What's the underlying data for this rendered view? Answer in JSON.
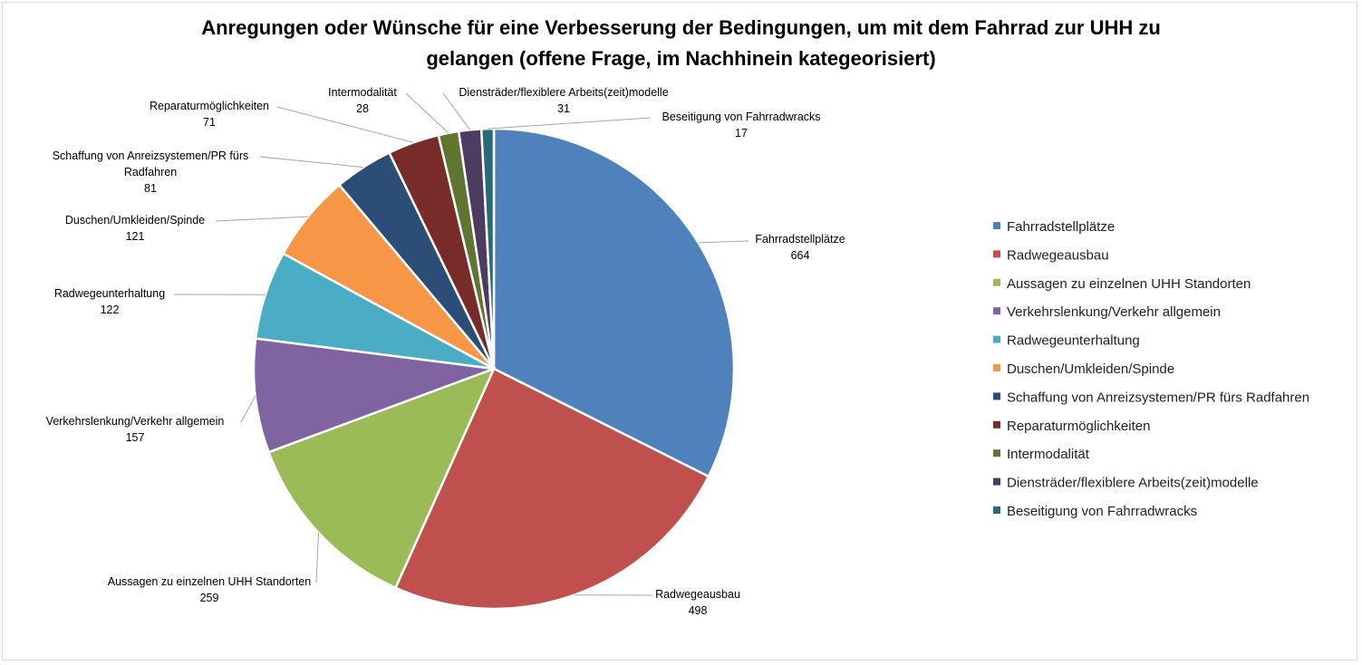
{
  "chart_data": {
    "type": "pie",
    "title_lines": [
      "Anregungen oder Wünsche für eine Verbesserung der Bedingungen, um mit dem Fahrrad zur UHH zu",
      "gelangen (offene Frage, im Nachhinein kategeorisiert)"
    ],
    "legend_position": "right",
    "slices": [
      {
        "label": "Fahrradstellplätze",
        "label_lines": [
          "Fahrradstellplätze"
        ],
        "value": 664,
        "color": "#4f81bd"
      },
      {
        "label": "Radwegeausbau",
        "label_lines": [
          "Radwegeausbau"
        ],
        "value": 498,
        "color": "#c0504d"
      },
      {
        "label": "Aussagen zu einzelnen UHH Standorten",
        "label_lines": [
          "Aussagen zu einzelnen UHH Standorten"
        ],
        "value": 259,
        "color": "#9bbb59"
      },
      {
        "label": "Verkehrslenkung/Verkehr allgemein",
        "label_lines": [
          "Verkehrslenkung/Verkehr allgemein"
        ],
        "value": 157,
        "color": "#8064a2"
      },
      {
        "label": "Radwegeunterhaltung",
        "label_lines": [
          "Radwegeunterhaltung"
        ],
        "value": 122,
        "color": "#4bacc6"
      },
      {
        "label": "Duschen/Umkleiden/Spinde",
        "label_lines": [
          "Duschen/Umkleiden/Spinde"
        ],
        "value": 121,
        "color": "#f79646"
      },
      {
        "label": "Schaffung von Anreizsystemen/PR fürs Radfahren",
        "label_lines": [
          "Schaffung von Anreizsystemen/PR fürs",
          "Radfahren"
        ],
        "value": 81,
        "color": "#2c4d75"
      },
      {
        "label": "Reparaturmöglichkeiten",
        "label_lines": [
          "Reparaturmöglichkeiten"
        ],
        "value": 71,
        "color": "#772c2a"
      },
      {
        "label": "Intermodalität",
        "label_lines": [
          "Intermodalität"
        ],
        "value": 28,
        "color": "#5f7530"
      },
      {
        "label": "Diensträder/flexiblere Arbeits(zeit)modelle",
        "label_lines": [
          "Diensträder/flexiblere Arbeits(zeit)modelle"
        ],
        "value": 31,
        "color": "#4d3b62"
      },
      {
        "label": "Beseitigung von Fahrradwracks",
        "label_lines": [
          "Beseitigung von Fahrradwracks"
        ],
        "value": 17,
        "color": "#276a7c"
      }
    ]
  }
}
